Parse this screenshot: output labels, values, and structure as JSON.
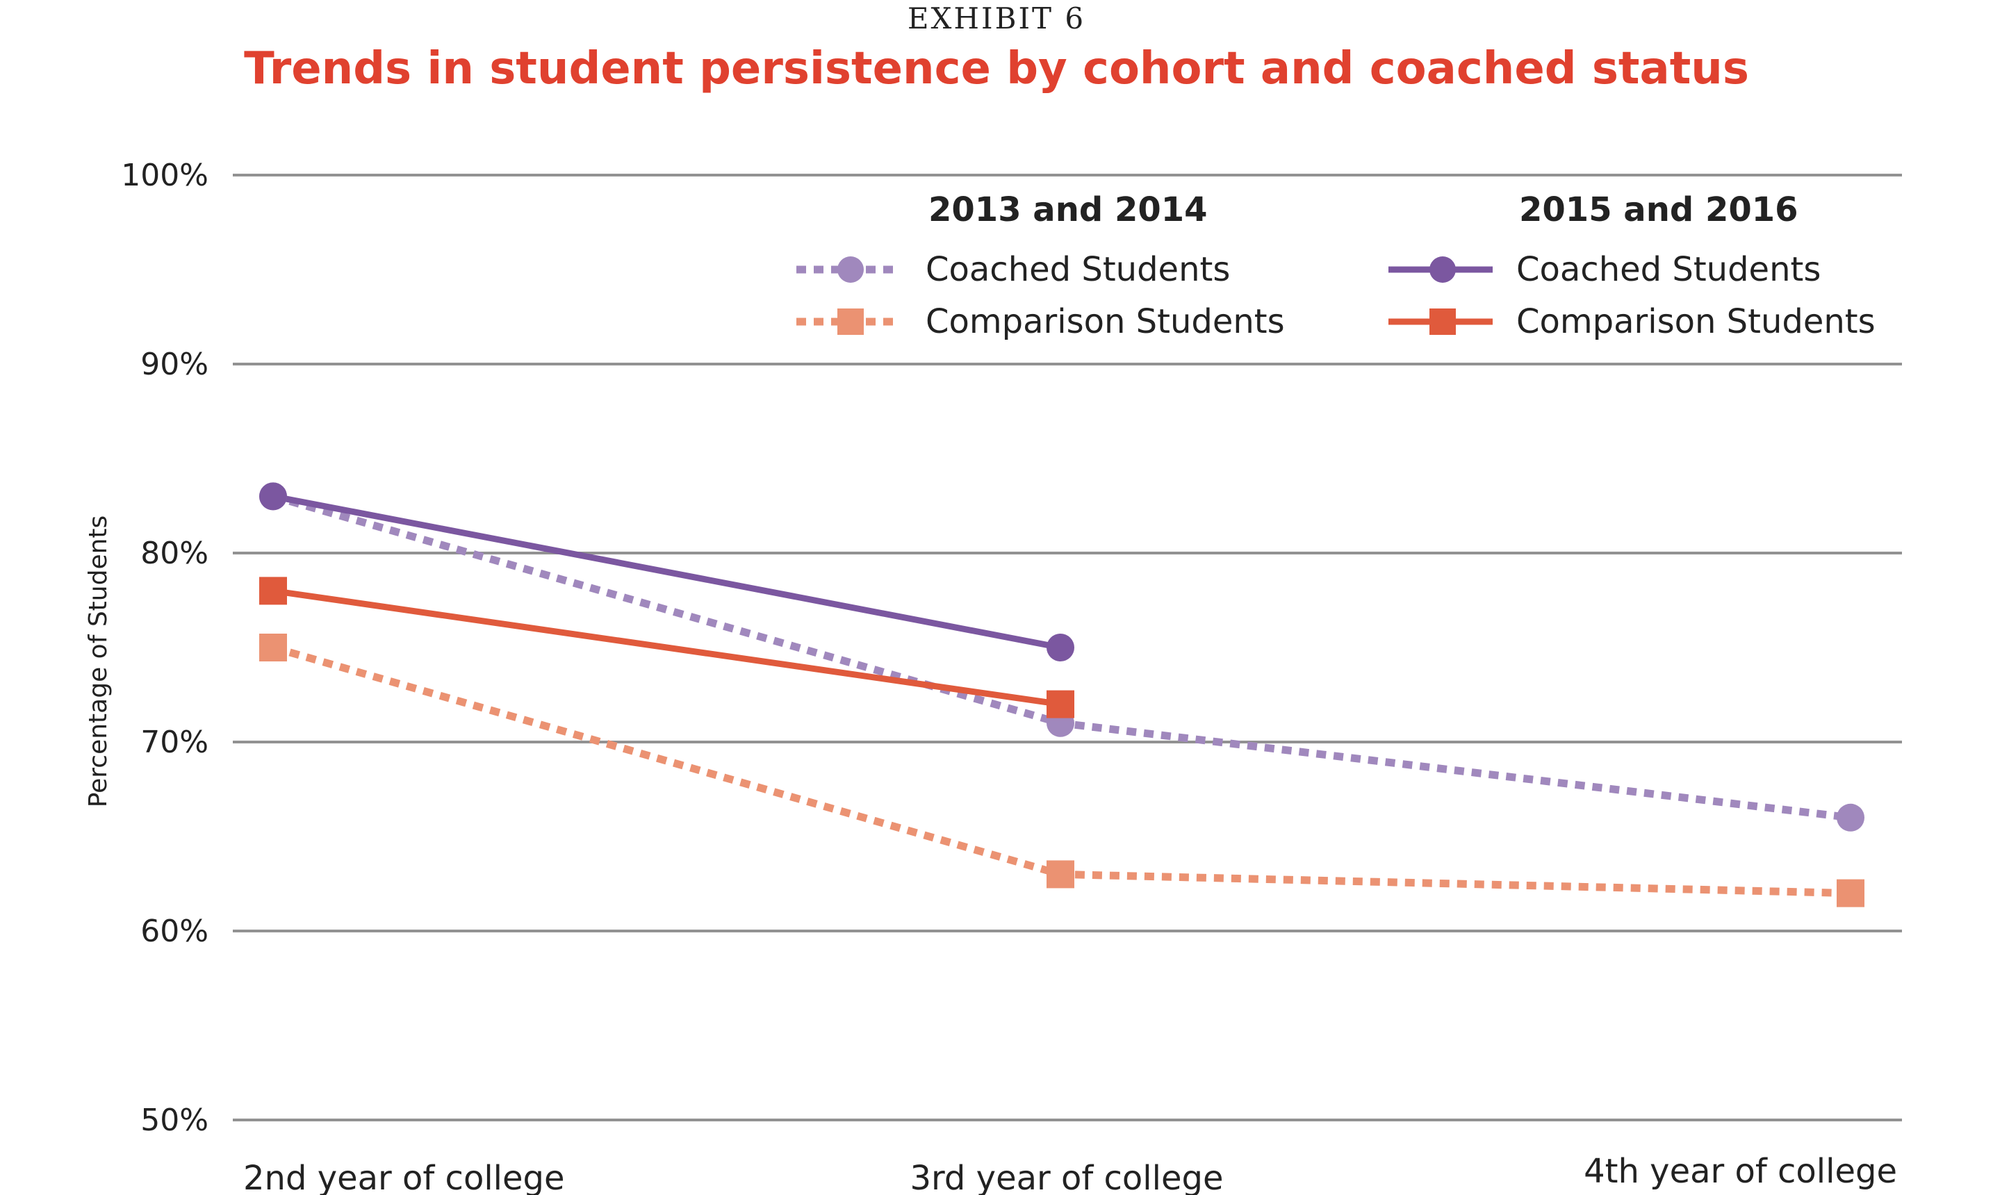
{
  "header": {
    "exhibit": "EXHIBIT 6",
    "title": "Trends in student persistence by cohort and coached status"
  },
  "chart_data": {
    "type": "line",
    "title": "Trends in student persistence by cohort and coached status",
    "xlabel": "",
    "ylabel": "Percentage of Students",
    "categories": [
      "2nd year of college",
      "3rd year of college",
      "4th year of college"
    ],
    "ylim": [
      50,
      100
    ],
    "yticks": [
      50,
      60,
      70,
      80,
      90,
      100
    ],
    "ytick_labels": [
      "50%",
      "60%",
      "70%",
      "80%",
      "90%",
      "100%"
    ],
    "grid": true,
    "legend_placement": "top-right",
    "legend_groups": [
      "2013 and 2014",
      "2015 and 2016"
    ],
    "series": [
      {
        "name": "Coached Students",
        "group": "2013 and 2014",
        "values": [
          83,
          71,
          66
        ],
        "color": "#a088bd",
        "style": "dotted",
        "marker": "circle"
      },
      {
        "name": "Comparison Students",
        "group": "2013 and 2014",
        "values": [
          75,
          63,
          62
        ],
        "color": "#eb9272",
        "style": "dotted",
        "marker": "square"
      },
      {
        "name": "Coached Students",
        "group": "2015 and 2016",
        "values": [
          83,
          75,
          null
        ],
        "color": "#7b57a0",
        "style": "solid",
        "marker": "circle"
      },
      {
        "name": "Comparison Students",
        "group": "2015 and 2016",
        "values": [
          78,
          72,
          null
        ],
        "color": "#e05a3c",
        "style": "solid",
        "marker": "square"
      }
    ]
  }
}
